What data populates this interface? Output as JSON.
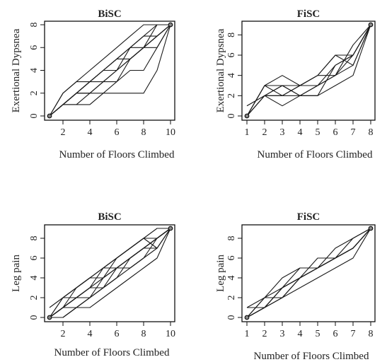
{
  "chart_data": [
    {
      "type": "line",
      "title": "BiSC",
      "xlabel": "Number of Floors Climbed",
      "ylabel": "Exertional Dypsnea",
      "xlim": [
        1,
        10
      ],
      "ylim": [
        0,
        8
      ],
      "xticks": [
        2,
        4,
        6,
        8,
        10
      ],
      "yticks": [
        0,
        2,
        4,
        6,
        8
      ],
      "endpoints": [
        [
          1,
          0
        ],
        [
          10,
          8
        ]
      ],
      "series": [
        {
          "x": [
            1,
            2,
            3,
            4,
            5,
            6,
            7,
            8,
            9,
            10
          ],
          "values": [
            0,
            1,
            2,
            2,
            3,
            3,
            4,
            4,
            6,
            8
          ]
        },
        {
          "x": [
            1,
            2,
            3,
            4,
            5,
            6,
            7,
            8,
            9,
            10
          ],
          "values": [
            0,
            1,
            1,
            2,
            2,
            3,
            5,
            6,
            7,
            8
          ]
        },
        {
          "x": [
            1,
            2,
            3,
            4,
            5,
            6,
            7,
            8,
            9,
            10
          ],
          "values": [
            0,
            1,
            2,
            3,
            4,
            5,
            6,
            6,
            7,
            8
          ]
        },
        {
          "x": [
            1,
            2,
            3,
            4,
            5,
            6,
            7,
            8,
            9,
            10
          ],
          "values": [
            0,
            2,
            3,
            4,
            5,
            6,
            7,
            8,
            8,
            8
          ]
        },
        {
          "x": [
            1,
            2,
            3,
            4,
            5,
            6,
            7,
            8,
            9,
            10
          ],
          "values": [
            0,
            1,
            2,
            3,
            3,
            4,
            5,
            6,
            7,
            8
          ]
        },
        {
          "x": [
            1,
            2,
            3,
            4,
            5,
            6,
            7,
            8,
            9,
            10
          ],
          "values": [
            0,
            1,
            1,
            1,
            2,
            2,
            2,
            2,
            4,
            8
          ]
        },
        {
          "x": [
            1,
            2,
            3,
            4,
            5,
            6,
            7,
            8,
            9,
            10
          ],
          "values": [
            0,
            1,
            2,
            2,
            3,
            4,
            6,
            7,
            8,
            8
          ]
        },
        {
          "x": [
            1,
            2,
            3,
            4,
            5,
            6,
            7,
            8,
            9,
            10
          ],
          "values": [
            0,
            1,
            2,
            3,
            4,
            5,
            6,
            7,
            7,
            8
          ]
        },
        {
          "x": [
            1,
            2,
            3,
            4,
            5,
            6,
            7,
            8,
            9,
            10
          ],
          "values": [
            0,
            2,
            3,
            3,
            4,
            5,
            5,
            6,
            6,
            8
          ]
        },
        {
          "x": [
            1,
            2,
            3,
            4,
            5,
            6,
            7,
            8,
            9,
            10
          ],
          "values": [
            0,
            1,
            2,
            3,
            4,
            4,
            5,
            6,
            8,
            8
          ]
        }
      ]
    },
    {
      "type": "line",
      "title": "FiSC",
      "xlabel": "Number of Floors Climbed",
      "ylabel": "Exertional Dypsnea",
      "xlim": [
        1,
        8
      ],
      "ylim": [
        0,
        9
      ],
      "xticks": [
        1,
        2,
        3,
        4,
        5,
        6,
        7,
        8
      ],
      "yticks": [
        0,
        2,
        4,
        6,
        8
      ],
      "endpoints": [
        [
          1,
          0
        ],
        [
          8,
          9
        ]
      ],
      "series": [
        {
          "x": [
            1,
            2,
            3,
            4,
            5,
            6,
            7,
            8
          ],
          "values": [
            0,
            2,
            3,
            2,
            3,
            4,
            5,
            9
          ]
        },
        {
          "x": [
            1,
            2,
            3,
            4,
            5,
            6,
            7,
            8
          ],
          "values": [
            0,
            3,
            2,
            3,
            3,
            5,
            6,
            9
          ]
        },
        {
          "x": [
            1,
            2,
            3,
            4,
            5,
            6,
            7,
            8
          ],
          "values": [
            1,
            2,
            2,
            3,
            4,
            4,
            6,
            9
          ]
        },
        {
          "x": [
            1,
            2,
            3,
            4,
            5,
            6,
            7,
            8
          ],
          "values": [
            0,
            3,
            4,
            3,
            4,
            6,
            5,
            9
          ]
        },
        {
          "x": [
            1,
            2,
            3,
            4,
            5,
            6,
            7,
            8
          ],
          "values": [
            0,
            2,
            1,
            2,
            2,
            3,
            4,
            9
          ]
        },
        {
          "x": [
            1,
            2,
            3,
            4,
            5,
            6,
            7,
            8
          ],
          "values": [
            0,
            3,
            3,
            2,
            2,
            5,
            6,
            9
          ]
        },
        {
          "x": [
            1,
            2,
            3,
            4,
            5,
            6,
            7,
            8
          ],
          "values": [
            1,
            2,
            2,
            2,
            3,
            4,
            7,
            9
          ]
        },
        {
          "x": [
            1,
            2,
            3,
            4,
            5,
            6,
            7,
            8
          ],
          "values": [
            0,
            2,
            3,
            3,
            4,
            6,
            6,
            9
          ]
        }
      ]
    },
    {
      "type": "line",
      "title": "BiSC",
      "xlabel": "Number of Floors Climbed",
      "ylabel": "Leg pain",
      "xlim": [
        1,
        10
      ],
      "ylim": [
        0,
        9
      ],
      "xticks": [
        2,
        4,
        6,
        8,
        10
      ],
      "yticks": [
        0,
        2,
        4,
        6,
        8
      ],
      "endpoints": [
        [
          1,
          0
        ],
        [
          10,
          9
        ]
      ],
      "series": [
        {
          "x": [
            1,
            2,
            3,
            4,
            5,
            6,
            7,
            8,
            9,
            10
          ],
          "values": [
            0,
            1,
            2,
            3,
            5,
            6,
            7,
            8,
            8,
            9
          ]
        },
        {
          "x": [
            1,
            2,
            3,
            4,
            5,
            6,
            7,
            8,
            9,
            10
          ],
          "values": [
            0,
            2,
            3,
            4,
            4,
            5,
            6,
            7,
            8,
            9
          ]
        },
        {
          "x": [
            1,
            2,
            3,
            4,
            5,
            6,
            7,
            8,
            9,
            10
          ],
          "values": [
            0,
            1,
            1,
            2,
            3,
            4,
            5,
            6,
            7,
            9
          ]
        },
        {
          "x": [
            1,
            2,
            3,
            4,
            5,
            6,
            7,
            8,
            9,
            10
          ],
          "values": [
            0,
            0,
            1,
            2,
            4,
            5,
            5,
            6,
            8,
            9
          ]
        },
        {
          "x": [
            1,
            2,
            3,
            4,
            5,
            6,
            7,
            8,
            9,
            10
          ],
          "values": [
            1,
            2,
            3,
            4,
            5,
            6,
            7,
            8,
            9,
            9
          ]
        },
        {
          "x": [
            1,
            2,
            3,
            4,
            5,
            6,
            7,
            8,
            9,
            10
          ],
          "values": [
            0,
            1,
            2,
            3,
            3,
            4,
            6,
            7,
            7,
            9
          ]
        },
        {
          "x": [
            1,
            2,
            3,
            4,
            5,
            6,
            7,
            8,
            9,
            10
          ],
          "values": [
            0,
            1,
            2,
            2,
            3,
            5,
            6,
            7,
            8,
            9
          ]
        },
        {
          "x": [
            1,
            2,
            3,
            4,
            5,
            6,
            7,
            8,
            9,
            10
          ],
          "values": [
            0,
            0,
            1,
            1,
            2,
            3,
            4,
            5,
            6,
            9
          ]
        },
        {
          "x": [
            1,
            2,
            3,
            4,
            5,
            6,
            7,
            8,
            9,
            10
          ],
          "values": [
            0,
            2,
            2,
            3,
            4,
            6,
            7,
            8,
            7,
            9
          ]
        },
        {
          "x": [
            1,
            2,
            3,
            4,
            5,
            6,
            7,
            8,
            9,
            10
          ],
          "values": [
            0,
            1,
            3,
            4,
            5,
            5,
            6,
            7,
            8,
            9
          ]
        }
      ]
    },
    {
      "type": "line",
      "title": "FiSC",
      "xlabel": "Number of Floors Climbed",
      "ylabel": "Leg pain",
      "xlim": [
        1,
        8
      ],
      "ylim": [
        0,
        9
      ],
      "xticks": [
        1,
        2,
        3,
        4,
        5,
        6,
        7,
        8
      ],
      "yticks": [
        0,
        2,
        4,
        6,
        8
      ],
      "endpoints": [
        [
          1,
          0
        ],
        [
          8,
          9
        ]
      ],
      "series": [
        {
          "x": [
            1,
            2,
            3,
            4,
            5,
            6,
            7,
            8
          ],
          "values": [
            0,
            1,
            3,
            4,
            5,
            6,
            7,
            9
          ]
        },
        {
          "x": [
            1,
            2,
            3,
            4,
            5,
            6,
            7,
            8
          ],
          "values": [
            1,
            1,
            2,
            4,
            5,
            6,
            7,
            9
          ]
        },
        {
          "x": [
            1,
            2,
            3,
            4,
            5,
            6,
            7,
            8
          ],
          "values": [
            0,
            2,
            3,
            5,
            5,
            6,
            7,
            9
          ]
        },
        {
          "x": [
            1,
            2,
            3,
            4,
            5,
            6,
            7,
            8
          ],
          "values": [
            0,
            1,
            2,
            3,
            4,
            5,
            6,
            9
          ]
        },
        {
          "x": [
            1,
            2,
            3,
            4,
            5,
            6,
            7,
            8
          ],
          "values": [
            1,
            2,
            4,
            5,
            5,
            6,
            7,
            9
          ]
        },
        {
          "x": [
            1,
            2,
            3,
            4,
            5,
            6,
            7,
            8
          ],
          "values": [
            0,
            1,
            3,
            4,
            6,
            6,
            7,
            9
          ]
        },
        {
          "x": [
            1,
            2,
            3,
            4,
            5,
            6,
            7,
            8
          ],
          "values": [
            0,
            2,
            2,
            4,
            5,
            6,
            8,
            9
          ]
        },
        {
          "x": [
            1,
            2,
            3,
            4,
            5,
            6,
            7,
            8
          ],
          "values": [
            0,
            1,
            3,
            4,
            5,
            7,
            8,
            9
          ]
        }
      ]
    }
  ]
}
